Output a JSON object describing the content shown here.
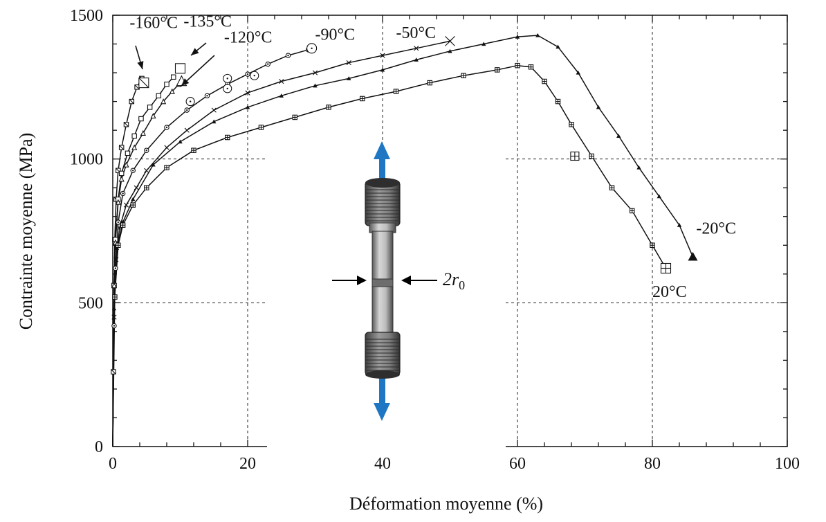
{
  "chart_data": {
    "type": "line",
    "title": "",
    "xlabel": "Déformation moyenne (%)",
    "ylabel": "Contrainte moyenne (MPa)",
    "xlim": [
      0,
      100
    ],
    "ylim": [
      0,
      1500
    ],
    "xticks": [
      0,
      20,
      40,
      60,
      80,
      100
    ],
    "yticks": [
      0,
      500,
      1000,
      1500
    ],
    "x_tick_labels": [
      "0",
      "20",
      "40",
      "60",
      "80",
      "100"
    ],
    "y_tick_labels": [
      "0",
      "500",
      "1000",
      "1500"
    ],
    "grid": "dashed at x=20,40,60,80 and y=500,1000",
    "legend": "none (series labelled directly on the curves)",
    "series": [
      {
        "name": "-160°C",
        "marker": "square-x",
        "points": [
          [
            0,
            0
          ],
          [
            0.1,
            260
          ],
          [
            0.2,
            560
          ],
          [
            0.3,
            720
          ],
          [
            0.5,
            860
          ],
          [
            0.8,
            960
          ],
          [
            1.3,
            1040
          ],
          [
            2.0,
            1120
          ],
          [
            2.8,
            1200
          ],
          [
            3.6,
            1250
          ],
          [
            4.3,
            1280
          ]
        ],
        "end_marker": [
          4.6,
          1265
        ]
      },
      {
        "name": "-135°C",
        "marker": "square",
        "points": [
          [
            0,
            0
          ],
          [
            0.2,
            560
          ],
          [
            0.4,
            720
          ],
          [
            0.8,
            860
          ],
          [
            1.3,
            950
          ],
          [
            2.2,
            1020
          ],
          [
            3.2,
            1080
          ],
          [
            4.2,
            1140
          ],
          [
            5.5,
            1180
          ],
          [
            6.8,
            1220
          ],
          [
            8.0,
            1260
          ],
          [
            9.0,
            1285
          ]
        ],
        "end_marker": [
          10.0,
          1315
        ]
      },
      {
        "name": "-120°C",
        "marker": "triangle-open",
        "points": [
          [
            0,
            0
          ],
          [
            0.2,
            560
          ],
          [
            0.4,
            710
          ],
          [
            0.8,
            850
          ],
          [
            1.3,
            930
          ],
          [
            2.0,
            980
          ],
          [
            3.2,
            1040
          ],
          [
            4.5,
            1090
          ],
          [
            6.0,
            1150
          ],
          [
            7.5,
            1200
          ],
          [
            8.8,
            1235
          ],
          [
            9.8,
            1260
          ]
        ],
        "end_marker": [
          10.2,
          1272
        ]
      },
      {
        "name": "-90°C",
        "marker": "circle-dot",
        "points": [
          [
            0,
            0
          ],
          [
            0.2,
            420
          ],
          [
            0.4,
            620
          ],
          [
            0.8,
            780
          ],
          [
            1.5,
            880
          ],
          [
            3.0,
            960
          ],
          [
            5.0,
            1030
          ],
          [
            8.0,
            1110
          ],
          [
            11.0,
            1170
          ],
          [
            14.0,
            1220
          ],
          [
            17.0,
            1260
          ],
          [
            20.0,
            1295
          ],
          [
            23.0,
            1330
          ],
          [
            26.0,
            1360
          ],
          [
            29.0,
            1380
          ]
        ],
        "end_marker": [
          29.5,
          1385
        ]
      },
      {
        "name": "-50°C",
        "marker": "x",
        "points": [
          [
            0,
            0
          ],
          [
            0.2,
            450
          ],
          [
            0.5,
            650
          ],
          [
            1.0,
            760
          ],
          [
            2.0,
            840
          ],
          [
            3.5,
            900
          ],
          [
            5.0,
            960
          ],
          [
            8.0,
            1040
          ],
          [
            11.0,
            1100
          ],
          [
            15.0,
            1170
          ],
          [
            20.0,
            1230
          ],
          [
            25.0,
            1270
          ],
          [
            30.0,
            1300
          ],
          [
            35.0,
            1335
          ],
          [
            40.0,
            1360
          ],
          [
            45.0,
            1385
          ],
          [
            50.0,
            1410
          ]
        ],
        "end_marker": [
          50.0,
          1410
        ]
      },
      {
        "name": "-20°C",
        "marker": "triangle-filled",
        "points": [
          [
            0,
            0
          ],
          [
            0.2,
            480
          ],
          [
            0.6,
            690
          ],
          [
            1.5,
            780
          ],
          [
            3.0,
            860
          ],
          [
            6.0,
            980
          ],
          [
            10.0,
            1060
          ],
          [
            15.0,
            1130
          ],
          [
            20.0,
            1180
          ],
          [
            25.0,
            1220
          ],
          [
            30.0,
            1255
          ],
          [
            35.0,
            1280
          ],
          [
            40.0,
            1310
          ],
          [
            45.0,
            1345
          ],
          [
            50.0,
            1375
          ],
          [
            55.0,
            1400
          ],
          [
            60.0,
            1425
          ],
          [
            63.0,
            1430
          ],
          [
            66.0,
            1390
          ],
          [
            69.0,
            1300
          ],
          [
            72.0,
            1180
          ],
          [
            75.0,
            1080
          ],
          [
            78.0,
            970
          ],
          [
            81.0,
            870
          ],
          [
            84.0,
            770
          ],
          [
            86.0,
            660
          ]
        ],
        "end_marker": [
          86.0,
          660
        ]
      },
      {
        "name": "20°C",
        "marker": "square-plus",
        "points": [
          [
            0,
            0
          ],
          [
            0.3,
            520
          ],
          [
            0.8,
            700
          ],
          [
            1.5,
            770
          ],
          [
            3.0,
            840
          ],
          [
            5.0,
            900
          ],
          [
            8.0,
            970
          ],
          [
            12.0,
            1030
          ],
          [
            17.0,
            1075
          ],
          [
            22.0,
            1110
          ],
          [
            27.0,
            1145
          ],
          [
            32.0,
            1180
          ],
          [
            37.0,
            1210
          ],
          [
            42.0,
            1235
          ],
          [
            47.0,
            1265
          ],
          [
            52.0,
            1290
          ],
          [
            57.0,
            1310
          ],
          [
            60.0,
            1325
          ],
          [
            62.0,
            1320
          ],
          [
            64.0,
            1270
          ],
          [
            66.0,
            1200
          ],
          [
            68.0,
            1120
          ],
          [
            71.0,
            1010
          ],
          [
            74.0,
            900
          ],
          [
            77.0,
            820
          ],
          [
            80.0,
            700
          ],
          [
            82.0,
            620
          ]
        ],
        "end_marker": [
          82.0,
          620
        ]
      }
    ],
    "extra_markers": [
      {
        "series": "20°C",
        "marker": "square-plus",
        "x": 68.5,
        "y": 1010
      },
      {
        "series": "-90°C",
        "marker": "circle-dot",
        "x": 17.0,
        "y": 1280
      },
      {
        "series": "-90°C",
        "marker": "circle-dot",
        "x": 17.0,
        "y": 1245
      },
      {
        "series": "-90°C",
        "marker": "circle-dot",
        "x": 21.0,
        "y": 1290
      },
      {
        "series": "-90°C",
        "marker": "circle-dot",
        "x": 11.5,
        "y": 1200
      }
    ],
    "annotations": [
      {
        "text": "-160°C",
        "x": 2.5,
        "y": 1455
      },
      {
        "text": "-135°C",
        "x": 10.5,
        "y": 1460
      },
      {
        "text": "-120°C",
        "x": 16.5,
        "y": 1405
      },
      {
        "text": "-90°C",
        "x": 30.0,
        "y": 1415
      },
      {
        "text": "-50°C",
        "x": 42.0,
        "y": 1420
      },
      {
        "text": "-20°C",
        "x": 86.5,
        "y": 740
      },
      {
        "text": "20°C",
        "x": 80.0,
        "y": 520
      }
    ],
    "inset": {
      "description": "tensile specimen with arrows",
      "dimension_label": "2r",
      "dimension_subscript": "0"
    },
    "colors": {
      "arrow": "#1f77c4",
      "line": "#111111",
      "grid": "#222222"
    }
  }
}
